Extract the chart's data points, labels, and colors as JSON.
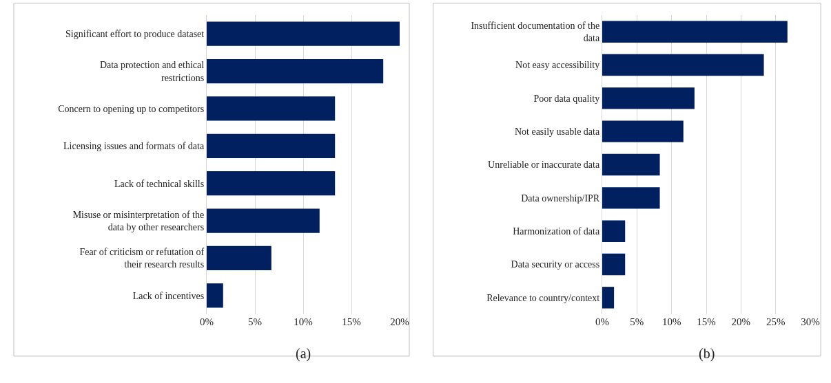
{
  "chart_data": [
    {
      "type": "bar",
      "orientation": "horizontal",
      "categories": [
        "Significant effort to produce dataset",
        "Data protection and ethical restrictions",
        "Concern to opening up to competitors",
        "Licensing issues and formats of data",
        "Lack of technical skills",
        "Misuse or misinterpretation of the data by other researchers",
        "Fear of criticism or refutation of their research results",
        "Lack of incentives"
      ],
      "values": [
        20,
        18.3,
        13.3,
        13.3,
        13.3,
        11.7,
        6.7,
        1.7
      ],
      "color": "#002060",
      "xlim": [
        0,
        20
      ],
      "xticks": [
        {
          "value": 0,
          "label": "0%"
        },
        {
          "value": 5,
          "label": "5%"
        },
        {
          "value": 10,
          "label": "10%"
        },
        {
          "value": 15,
          "label": "15%"
        },
        {
          "value": 20,
          "label": "20%"
        }
      ],
      "grid": "x",
      "annotations": [
        "(a)"
      ]
    },
    {
      "type": "bar",
      "orientation": "horizontal",
      "categories": [
        "Insufficient documentation of the data",
        "Not easy accessibility",
        "Poor data quality",
        "Not easily usable data",
        "Unreliable or inaccurate data",
        "Data ownership/IPR",
        "Harmonization of data",
        "Data security or access",
        "Relevance to country/context"
      ],
      "values": [
        26.7,
        23.3,
        13.3,
        11.7,
        8.3,
        8.3,
        3.3,
        3.3,
        1.7
      ],
      "color": "#002060",
      "xlim": [
        0,
        30
      ],
      "xticks": [
        {
          "value": 0,
          "label": "0%"
        },
        {
          "value": 5,
          "label": "5%"
        },
        {
          "value": 10,
          "label": "10%"
        },
        {
          "value": 15,
          "label": "15%"
        },
        {
          "value": 20,
          "label": "20%"
        },
        {
          "value": 25,
          "label": "25%"
        },
        {
          "value": 30,
          "label": "30%"
        }
      ],
      "grid": "x",
      "annotations": [
        "(b)"
      ]
    }
  ]
}
